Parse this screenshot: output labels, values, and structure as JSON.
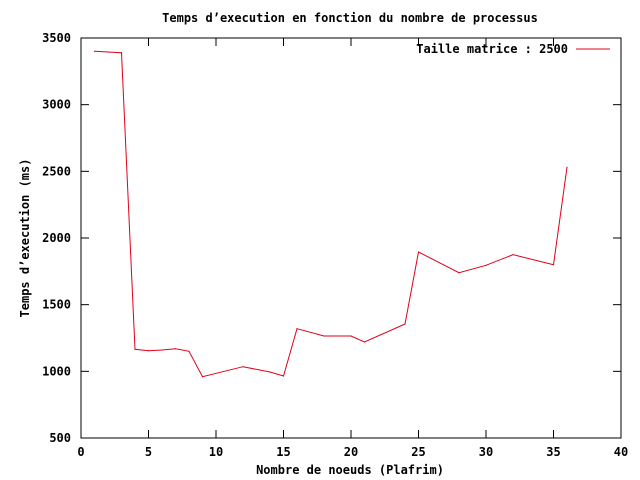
{
  "chart_data": {
    "type": "line",
    "title": "Temps d’execution en fonction du nombre de processus",
    "xlabel": "Nombre de noeuds (Plafrim)",
    "ylabel": "Temps d’execution (ms)",
    "xlim": [
      0,
      40
    ],
    "ylim": [
      500,
      3500
    ],
    "xticks": [
      0,
      5,
      10,
      15,
      20,
      25,
      30,
      35,
      40
    ],
    "yticks": [
      500,
      1000,
      1500,
      2000,
      2500,
      3000,
      3500
    ],
    "grid": false,
    "legend_position": "top-right",
    "series": [
      {
        "name": "Taille matrice : 2500",
        "color": "#e0001b",
        "x": [
          1,
          2,
          3,
          4,
          5,
          6,
          7,
          8,
          9,
          12,
          14,
          15,
          16,
          18,
          20,
          21,
          24,
          25,
          28,
          30,
          32,
          35,
          36
        ],
        "y": [
          3400,
          3395,
          3390,
          1165,
          1155,
          1160,
          1170,
          1150,
          960,
          1035,
          995,
          965,
          1320,
          1265,
          1265,
          1220,
          1355,
          1895,
          1740,
          1795,
          1875,
          1800,
          2530
        ]
      }
    ]
  }
}
